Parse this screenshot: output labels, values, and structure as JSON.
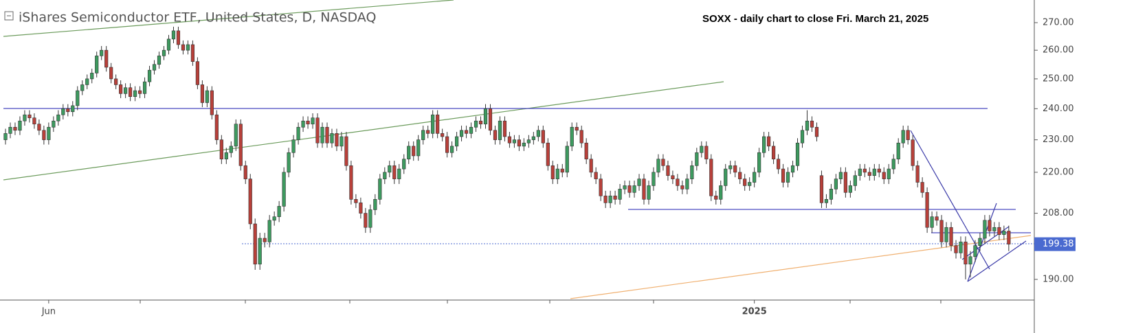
{
  "chart_data": {
    "type": "candlestick",
    "title": "iShares Semiconductor ETF, United States, D, NASDAQ",
    "annotation": "SOXX - daily chart to close Fri. March 21, 2025",
    "up_color": "#3d9a5f",
    "down_color": "#b8403a",
    "log_scale": true,
    "ylim": [
      184.7,
      278.5
    ],
    "yticks": [
      {
        "value": 190,
        "label": "190.00"
      },
      {
        "value": 208,
        "label": "208.00"
      },
      {
        "value": 220,
        "label": "220.00"
      },
      {
        "value": 230,
        "label": "230.00"
      },
      {
        "value": 240,
        "label": "240.00"
      },
      {
        "value": 250,
        "label": "250.00"
      },
      {
        "value": 260,
        "label": "260.00"
      },
      {
        "value": 270,
        "label": "270.00"
      }
    ],
    "categories": [
      null,
      null,
      null,
      null,
      null,
      null,
      null,
      null,
      null,
      "Jun",
      null,
      null,
      null,
      null,
      null,
      null,
      null,
      null,
      null,
      null,
      null,
      null,
      null,
      null,
      null,
      null,
      null,
      null,
      null,
      null,
      null,
      null,
      null,
      null,
      null,
      null,
      null,
      null,
      null,
      null,
      null,
      null,
      null,
      null,
      null,
      null,
      null,
      null,
      null,
      null,
      null,
      null,
      null,
      null,
      null,
      null,
      null,
      null,
      null,
      null,
      null,
      null,
      null,
      null,
      null,
      null,
      null,
      null,
      null,
      null,
      null,
      null,
      null,
      null,
      null,
      null,
      null,
      null,
      null,
      null,
      null,
      null,
      null,
      null,
      null,
      null,
      null,
      null,
      null,
      null,
      null,
      null,
      null,
      null,
      null,
      null,
      null,
      null,
      null,
      null,
      null,
      null,
      null,
      null,
      null,
      null,
      null,
      null,
      null,
      null,
      null,
      null,
      null,
      null,
      null,
      null,
      null,
      null,
      null,
      null,
      null,
      null,
      null,
      null,
      null,
      null,
      null,
      null,
      null,
      null,
      null,
      null,
      null,
      null,
      null,
      null,
      null,
      null,
      null,
      null,
      null,
      null,
      null,
      null,
      null,
      null,
      null,
      null,
      null,
      null,
      null,
      null,
      null,
      null,
      null,
      null,
      "2025",
      null,
      null,
      null,
      null,
      null,
      null,
      null,
      null,
      null,
      null,
      null,
      null,
      null,
      null,
      null,
      null,
      null,
      null,
      null,
      null,
      null,
      null,
      null,
      null,
      null,
      null,
      null,
      null,
      null,
      null,
      null,
      null,
      null,
      null,
      null,
      null,
      null,
      null,
      null,
      null,
      null,
      null,
      null,
      null,
      null,
      null,
      null,
      null,
      null,
      null,
      null,
      null,
      null
    ],
    "open": [
      230,
      232,
      234,
      233,
      236,
      238,
      237,
      235,
      233,
      230,
      234,
      236,
      238,
      240,
      239,
      241,
      246,
      248,
      250,
      252,
      258,
      260,
      254,
      250,
      248,
      245,
      247,
      244,
      246,
      245,
      249,
      253,
      255,
      258,
      260,
      264,
      267,
      262,
      260,
      262,
      256,
      248,
      242,
      246,
      238,
      230,
      224,
      226,
      228,
      235,
      222,
      218,
      205,
      194,
      201,
      200,
      206,
      207,
      210,
      220,
      226,
      230,
      234,
      236,
      235,
      237,
      229,
      234,
      229,
      232,
      228,
      231,
      222,
      212,
      211,
      208,
      204,
      209,
      212,
      218,
      220,
      222,
      218,
      221,
      224,
      228,
      225,
      230,
      233,
      232,
      238,
      232,
      231,
      226,
      228,
      231,
      233,
      232,
      234,
      236,
      235,
      240,
      233,
      230,
      236,
      231,
      229,
      230,
      228,
      229,
      230,
      231,
      233,
      229,
      222,
      218,
      221,
      220,
      228,
      234,
      233,
      229,
      224,
      220,
      218,
      213,
      211,
      213,
      212,
      215,
      216,
      214,
      216,
      218,
      212,
      216,
      220,
      224,
      222,
      219,
      218,
      216,
      215,
      218,
      222,
      226,
      228,
      224,
      213,
      212,
      216,
      221,
      222,
      220,
      218,
      216,
      217,
      220,
      226,
      231,
      228,
      224,
      221,
      217,
      220,
      222,
      229,
      233,
      236,
      234,
      219,
      211,
      212,
      215,
      218,
      220,
      214,
      216,
      219,
      221,
      220,
      219,
      221,
      220,
      218,
      221,
      224,
      229,
      233,
      230,
      222,
      217,
      214,
      204,
      207,
      206,
      200,
      204,
      199,
      197,
      200,
      194,
      196,
      199,
      201,
      206,
      203,
      204,
      202,
      203
    ],
    "high": [
      233.5,
      235.5,
      235.5,
      237.5,
      239.5,
      239.5,
      238.5,
      236.5,
      234.5,
      235.5,
      237.5,
      239.5,
      241.5,
      241.5,
      242.5,
      247.5,
      249.5,
      251.5,
      253.5,
      259.5,
      261.5,
      261.5,
      255.5,
      251.5,
      249.5,
      248.5,
      248.5,
      247.5,
      247.5,
      250.5,
      254.5,
      256.5,
      259.5,
      261.5,
      265.5,
      268.5,
      268.5,
      263.5,
      263.5,
      263.5,
      257.5,
      249.5,
      247.5,
      247.5,
      239.5,
      231.5,
      227.5,
      229.5,
      236.5,
      236.5,
      223.5,
      219.5,
      206.5,
      202.5,
      202.5,
      207.5,
      208.5,
      211.5,
      221.5,
      227.5,
      231.5,
      235.5,
      237.5,
      237.5,
      238.5,
      238.5,
      235.5,
      235.5,
      233.5,
      233.5,
      232.5,
      232.5,
      223.5,
      213.5,
      212.5,
      209.5,
      210.5,
      213.5,
      219.5,
      221.5,
      223.5,
      223.5,
      222.5,
      225.5,
      229.5,
      229.5,
      231.5,
      234.5,
      234.5,
      239.5,
      239.5,
      233.5,
      232.5,
      229.5,
      232.5,
      234.5,
      234.5,
      235.5,
      237.5,
      237.5,
      241.5,
      241.5,
      234.5,
      237.5,
      237.5,
      232.5,
      231.5,
      231.5,
      230.5,
      231.5,
      232.5,
      234.5,
      234.5,
      230.5,
      223.5,
      222.5,
      222.5,
      229.5,
      235.5,
      235.5,
      234.5,
      230.5,
      225.5,
      221.5,
      219.5,
      214.5,
      214.5,
      214.5,
      216.5,
      217.5,
      217.5,
      217.5,
      219.5,
      219.5,
      217.5,
      221.5,
      225.5,
      225.5,
      223.5,
      220.5,
      219.5,
      217.5,
      219.5,
      223.5,
      227.5,
      229.5,
      229.5,
      225.5,
      214.5,
      217.5,
      222.5,
      223.5,
      223.5,
      221.5,
      219.5,
      218.5,
      221.5,
      227.5,
      232.5,
      232.5,
      229.5,
      225.5,
      222.5,
      221.5,
      223.5,
      230.5,
      234.5,
      239.5,
      237.5,
      235.5,
      220.5,
      213.5,
      216.5,
      219.5,
      221.5,
      221.5,
      217.5,
      220.5,
      222.5,
      222.5,
      221.5,
      222.5,
      222.5,
      221.5,
      222.5,
      225.5,
      230.5,
      234.5,
      234.5,
      231.5,
      223.5,
      218.5,
      215.5,
      208.5,
      208.5,
      207.5,
      205.5,
      205.5,
      200.5,
      201.5,
      201.5,
      197.5,
      200.5,
      202.5,
      207.5,
      207.5,
      205.5,
      205.5,
      204.5,
      204.5
    ],
    "low": [
      228.5,
      230.5,
      231.5,
      231.5,
      234.5,
      235.5,
      233.5,
      231.5,
      228.5,
      228.5,
      232.5,
      234.5,
      236.5,
      237.5,
      237.5,
      239.5,
      244.5,
      246.5,
      248.5,
      250.5,
      256.5,
      252.5,
      248.5,
      246.5,
      243.5,
      243.5,
      242.5,
      242.5,
      243.5,
      243.5,
      247.5,
      251.5,
      253.5,
      256.5,
      258.5,
      262.5,
      260.5,
      258.5,
      258.5,
      254.5,
      246.5,
      240.5,
      240.5,
      236.5,
      228.5,
      222.5,
      222.5,
      224.5,
      226.5,
      220.5,
      216.5,
      203.5,
      192.5,
      192.5,
      198.5,
      198.5,
      204.5,
      205.5,
      208.5,
      218.5,
      224.5,
      228.5,
      232.5,
      233.5,
      233.5,
      227.5,
      227.5,
      227.5,
      227.5,
      226.5,
      226.5,
      220.5,
      210.5,
      209.5,
      206.5,
      202.5,
      202.5,
      207.5,
      210.5,
      216.5,
      218.5,
      216.5,
      216.5,
      219.5,
      222.5,
      223.5,
      223.5,
      228.5,
      230.5,
      230.5,
      230.5,
      229.5,
      224.5,
      224.5,
      226.5,
      229.5,
      230.5,
      230.5,
      232.5,
      233.5,
      233.5,
      231.5,
      228.5,
      228.5,
      229.5,
      227.5,
      227.5,
      226.5,
      226.5,
      227.5,
      228.5,
      229.5,
      227.5,
      220.5,
      216.5,
      216.5,
      218.5,
      218.5,
      226.5,
      231.5,
      227.5,
      222.5,
      218.5,
      216.5,
      211.5,
      209.5,
      209.5,
      210.5,
      210.5,
      213.5,
      212.5,
      212.5,
      214.5,
      210.5,
      210.5,
      214.5,
      218.5,
      220.5,
      217.5,
      216.5,
      214.5,
      213.5,
      213.5,
      216.5,
      220.5,
      224.5,
      222.5,
      211.5,
      210.5,
      210.5,
      214.5,
      219.5,
      218.5,
      216.5,
      214.5,
      214.5,
      215.5,
      218.5,
      224.5,
      226.5,
      222.5,
      219.5,
      215.5,
      215.5,
      218.5,
      220.5,
      227.5,
      231.5,
      232.5,
      229.5,
      209.5,
      209.5,
      210.5,
      213.5,
      216.5,
      212.5,
      212.5,
      214.5,
      217.5,
      218.5,
      217.5,
      217.5,
      218.5,
      216.5,
      216.5,
      219.5,
      222.5,
      227.5,
      228.5,
      220.5,
      215.5,
      212.5,
      202.5,
      202.5,
      204.5,
      198.5,
      198.5,
      197.5,
      195.5,
      195.5,
      190,
      190.5,
      194.5,
      197.5,
      199.5,
      201.5,
      201.5,
      200.5,
      200.5,
      197.5
    ],
    "close": [
      232,
      234,
      233,
      236,
      238,
      237,
      235,
      233,
      230,
      234,
      236,
      238,
      240,
      239,
      241,
      246,
      248,
      250,
      252,
      258,
      260,
      254,
      250,
      248,
      245,
      247,
      244,
      246,
      245,
      249,
      253,
      255,
      258,
      260,
      264,
      267,
      262,
      260,
      262,
      256,
      248,
      242,
      246,
      238,
      230,
      224,
      226,
      228,
      235,
      222,
      218,
      205,
      194,
      201,
      200,
      206,
      207,
      210,
      220,
      226,
      230,
      234,
      236,
      235,
      237,
      229,
      234,
      229,
      232,
      228,
      231,
      222,
      212,
      211,
      208,
      204,
      209,
      212,
      218,
      220,
      222,
      218,
      221,
      224,
      228,
      225,
      230,
      233,
      232,
      238,
      232,
      231,
      226,
      228,
      231,
      233,
      232,
      234,
      236,
      235,
      240,
      233,
      230,
      236,
      231,
      229,
      230,
      228,
      229,
      230,
      231,
      233,
      229,
      222,
      218,
      221,
      220,
      228,
      234,
      233,
      229,
      224,
      220,
      218,
      213,
      211,
      213,
      212,
      215,
      216,
      214,
      216,
      218,
      212,
      216,
      220,
      224,
      222,
      219,
      218,
      216,
      215,
      218,
      222,
      226,
      228,
      224,
      213,
      212,
      216,
      221,
      222,
      220,
      218,
      216,
      217,
      220,
      226,
      231,
      228,
      224,
      221,
      217,
      220,
      222,
      229,
      233,
      236,
      234,
      231,
      211,
      212,
      215,
      218,
      220,
      214,
      216,
      219,
      221,
      220,
      219,
      221,
      220,
      218,
      221,
      224,
      229,
      233,
      230,
      222,
      217,
      214,
      204,
      207,
      206,
      200,
      204,
      199,
      197,
      200,
      194,
      196,
      199,
      201,
      206,
      203,
      204,
      202,
      203,
      199.38
    ]
  }
}
